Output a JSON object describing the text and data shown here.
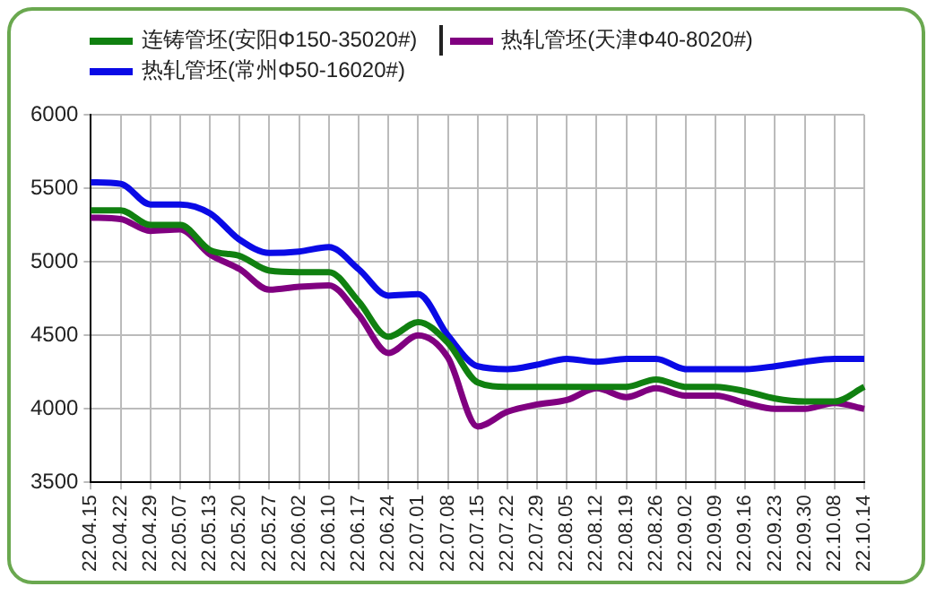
{
  "chart_data": {
    "type": "line",
    "legend": "top",
    "grid": true,
    "marker": "none",
    "line_style": "solid",
    "categories": [
      "22.04.15",
      "22.04.22",
      "22.04.29",
      "22.05.07",
      "22.05.13",
      "22.05.20",
      "22.05.27",
      "22.06.02",
      "22.06.10",
      "22.06.17",
      "22.06.24",
      "22.07.01",
      "22.07.08",
      "22.07.15",
      "22.07.22",
      "22.07.29",
      "22.08.05",
      "22.08.12",
      "22.08.19",
      "22.08.26",
      "22.09.02",
      "22.09.09",
      "22.09.16",
      "22.09.23",
      "22.09.30",
      "22.10.08",
      "22.10.14"
    ],
    "ylim": [
      3500,
      6000
    ],
    "yticks": [
      3500,
      4000,
      4500,
      5000,
      5500,
      6000
    ],
    "series": [
      {
        "name": "连铸管坯(安阳Φ150-35020#)",
        "color": "#108010",
        "values": [
          5350,
          5350,
          5250,
          5250,
          5080,
          5040,
          4940,
          4930,
          4930,
          4730,
          4490,
          4590,
          4450,
          4180,
          4150,
          4150,
          4150,
          4150,
          4150,
          4200,
          4150,
          4150,
          4120,
          4070,
          4050,
          4050,
          4150
        ]
      },
      {
        "name": "热轧管坯(常州Φ50-16020#)",
        "color": "#0a0ae6",
        "values": [
          5540,
          5530,
          5390,
          5390,
          5330,
          5150,
          5060,
          5070,
          5100,
          4950,
          4770,
          4780,
          4500,
          4290,
          4270,
          4300,
          4340,
          4320,
          4340,
          4340,
          4270,
          4270,
          4270,
          4290,
          4320,
          4340,
          4340
        ]
      },
      {
        "name": "热轧管坯(天津Φ40-8020#)",
        "color": "#800080",
        "values": [
          5300,
          5290,
          5210,
          5220,
          5050,
          4950,
          4810,
          4830,
          4840,
          4640,
          4380,
          4500,
          4350,
          3880,
          3980,
          4030,
          4060,
          4140,
          4080,
          4140,
          4090,
          4090,
          4040,
          4000,
          4000,
          4040,
          4000
        ]
      }
    ]
  }
}
